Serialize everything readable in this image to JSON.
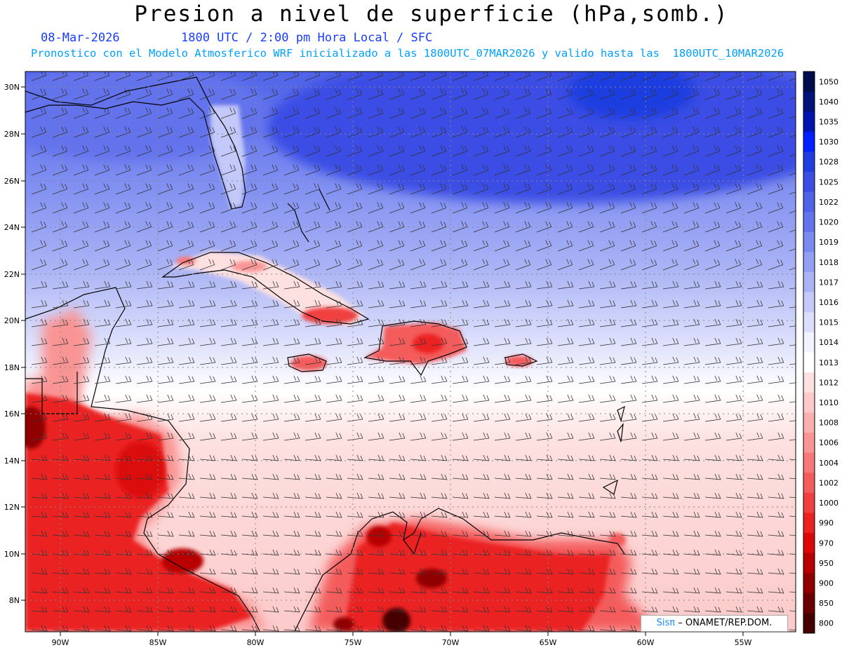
{
  "header": {
    "title": "Presion a nivel de superficie (hPa,somb.)",
    "date": "08-Mar-2026",
    "time_info": "1800 UTC / 2:00 pm Hora Local / SFC",
    "model_info": "Pronostico con el Modelo Atmosferico WRF inicializado a las 1800UTC_07MAR2026 y valido hasta las  1800UTC_10MAR2026"
  },
  "axes": {
    "lat_labels": [
      "30N",
      "28N",
      "26N",
      "24N",
      "22N",
      "20N",
      "18N",
      "16N",
      "14N",
      "12N",
      "10N",
      "8N"
    ],
    "lon_labels": [
      "90W",
      "85W",
      "80W",
      "75W",
      "70W",
      "65W",
      "60W",
      "55W"
    ]
  },
  "colorbar": {
    "labels": [
      "1050",
      "1040",
      "1035",
      "1030",
      "1028",
      "1025",
      "1022",
      "1020",
      "1019",
      "1018",
      "1017",
      "1016",
      "1015",
      "1014",
      "1013",
      "1012",
      "1010",
      "1008",
      "1006",
      "1004",
      "1002",
      "1000",
      "990",
      "970",
      "950",
      "900",
      "850",
      "800"
    ],
    "colors": [
      "#000d4d",
      "#00137a",
      "#0015b0",
      "#0020ff",
      "#1f3de0",
      "#3a4ee4",
      "#4f63e8",
      "#6373ec",
      "#7a8af0",
      "#929ff3",
      "#aab3f5",
      "#c3c9f8",
      "#dcdffb",
      "#f2f3fe",
      "#ffffff",
      "#fde0e0",
      "#fccaca",
      "#fbb0b0",
      "#f99494",
      "#f77878",
      "#f45c5c",
      "#f04040",
      "#eb2020",
      "#dc0808",
      "#b80000",
      "#900000",
      "#6a0000",
      "#460000"
    ]
  },
  "credit": {
    "brand": "Sisπ",
    "text": "– ONAMET/REP.DOM."
  }
}
